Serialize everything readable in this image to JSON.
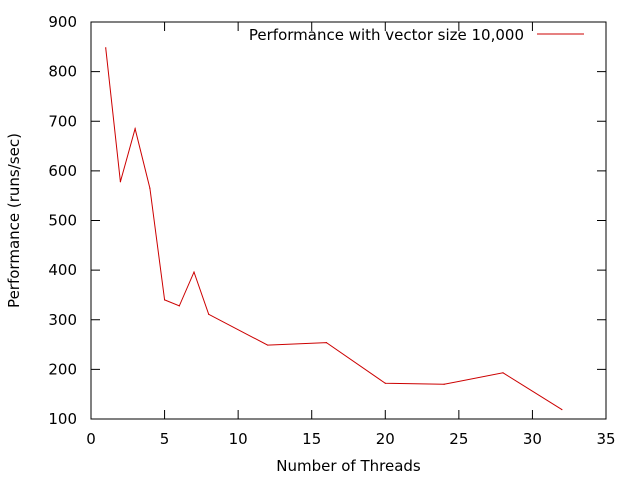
{
  "chart_data": {
    "type": "line",
    "title": "",
    "xlabel": "Number of Threads",
    "ylabel": "Performance (runs/sec)",
    "xlim": [
      0,
      35
    ],
    "ylim": [
      100,
      900
    ],
    "xticks": [
      0,
      5,
      10,
      15,
      20,
      25,
      30,
      35
    ],
    "yticks": [
      100,
      200,
      300,
      400,
      500,
      600,
      700,
      800,
      900
    ],
    "grid": false,
    "legend_position": "top-right",
    "series": [
      {
        "name": "Performance with vector size 10,000",
        "color": "#cc0000",
        "x": [
          1,
          2,
          3,
          4,
          5,
          6,
          7,
          8,
          12,
          16,
          20,
          24,
          28,
          32
        ],
        "y": [
          848,
          578,
          685,
          565,
          340,
          328,
          396,
          311,
          249,
          254,
          172,
          170,
          193,
          119
        ]
      }
    ]
  }
}
